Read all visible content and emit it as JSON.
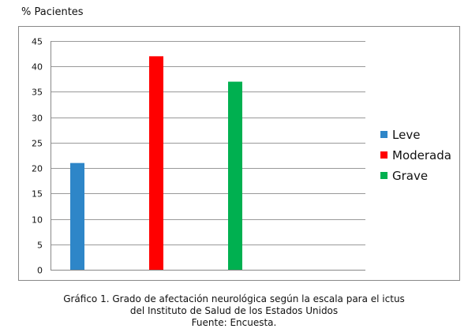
{
  "chart_data": {
    "type": "bar",
    "ylabel": "% Pacientes",
    "xlabel": "",
    "title": "",
    "ylim": [
      0,
      45
    ],
    "yticks": [
      0,
      5,
      10,
      15,
      20,
      25,
      30,
      35,
      40,
      45
    ],
    "grid": true,
    "legend_position": "right",
    "series": [
      {
        "name": "Leve",
        "value": 21,
        "color": "#2e86c8"
      },
      {
        "name": "Moderada",
        "value": 42,
        "color": "#ff0000"
      },
      {
        "name": "Grave",
        "value": 37,
        "color": "#00b050"
      }
    ]
  },
  "caption": {
    "line1": "Gráfico 1. Grado de afectación neurológica según la escala para el ictus",
    "line2": "del Instituto de Salud de los Estados Unidos",
    "line3": "Fuente: Encuesta."
  }
}
